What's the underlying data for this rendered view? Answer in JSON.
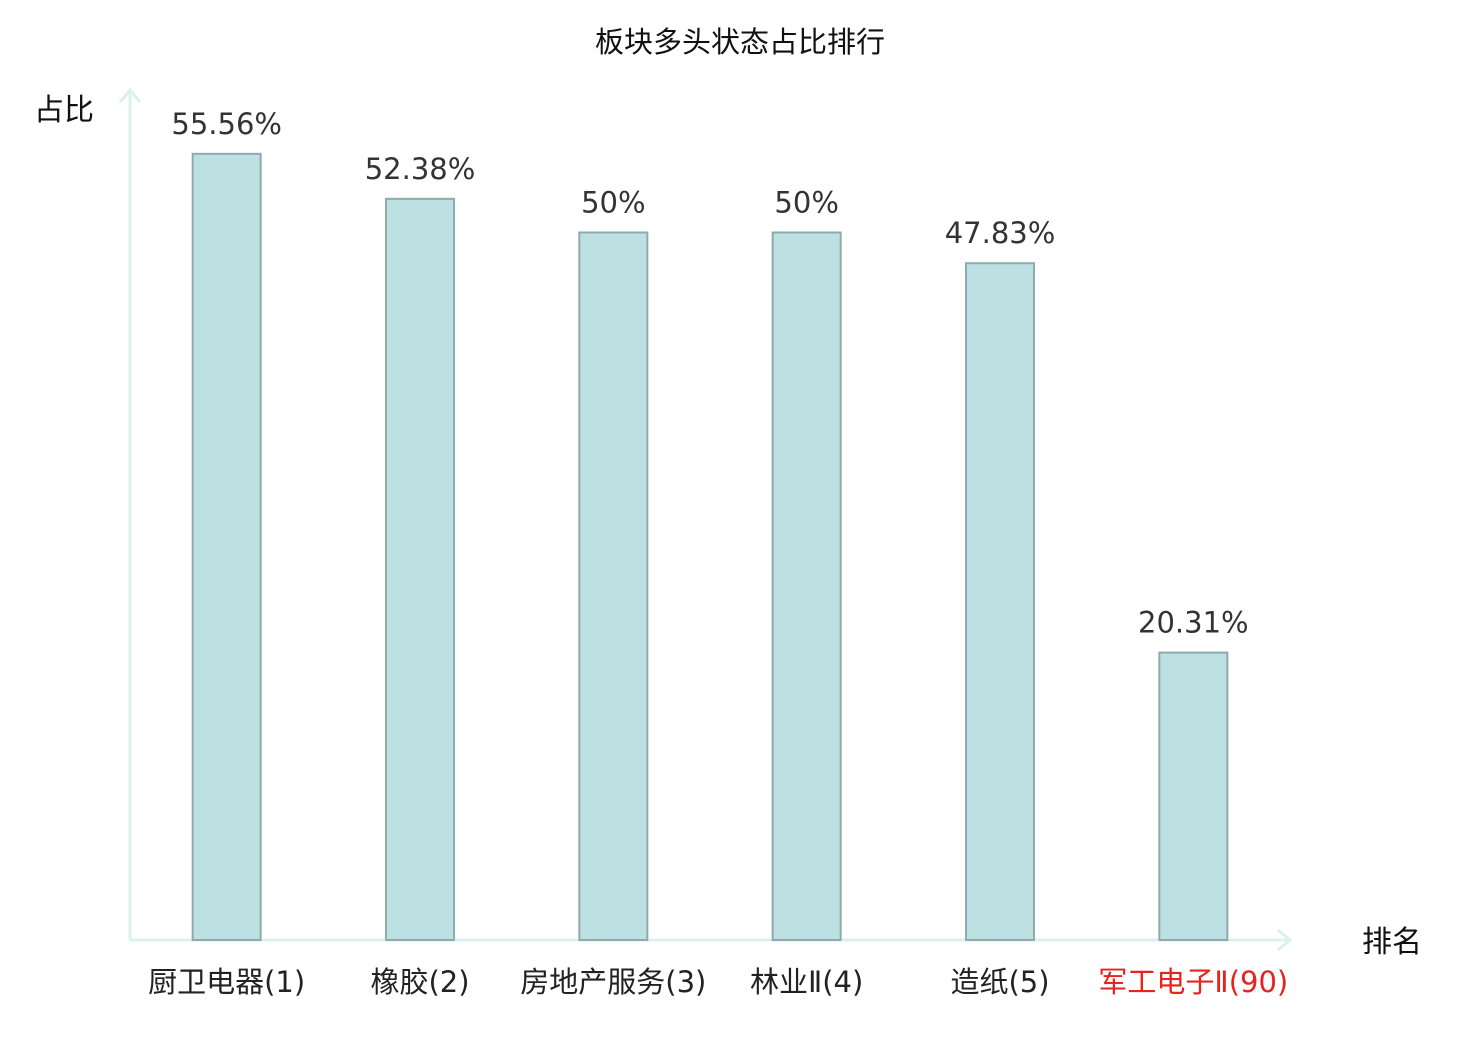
{
  "chart_data": {
    "type": "bar",
    "title": "板块多头状态占比排行",
    "y_label": "占比",
    "x_label": "排名",
    "categories": [
      "厨卫电器(1)",
      "橡胶(2)",
      "房地产服务(3)",
      "林业Ⅱ(4)",
      "造纸(5)",
      "军工电子Ⅱ(90)"
    ],
    "category_colors": [
      "#222222",
      "#222222",
      "#222222",
      "#222222",
      "#222222",
      "#e8221c"
    ],
    "values": [
      55.56,
      52.38,
      50,
      50,
      47.83,
      20.31
    ],
    "value_labels": [
      "55.56%",
      "52.38%",
      "50%",
      "50%",
      "47.83%",
      "20.31%"
    ],
    "color": "#bde0e3",
    "edge_color": "#8eaaad",
    "axis_color": "#dcf1ed",
    "ylim": [
      0,
      60
    ]
  }
}
